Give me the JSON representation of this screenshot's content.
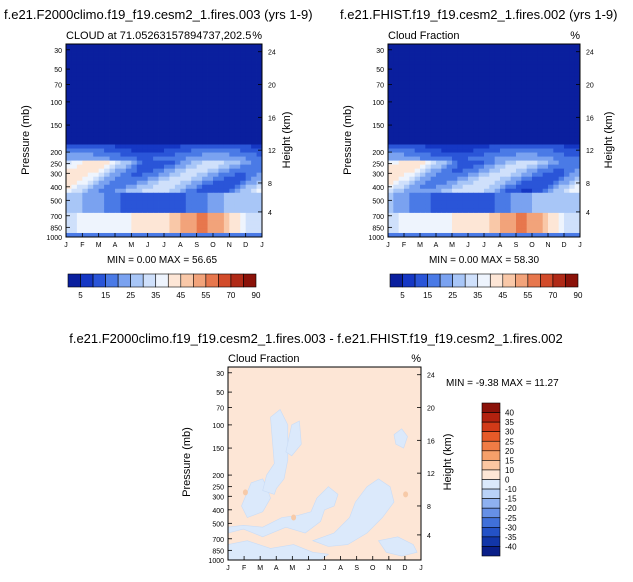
{
  "chart_data": [
    {
      "type": "heatmap",
      "id": "p1",
      "title": "f.e21.F2000climo.f19_f19.cesm2_1.fires.003 (yrs 1-9)",
      "subtitle_left": "CLOUD at 71.05263157894737,202.5",
      "subtitle_right": "%",
      "ylabel": "Pressure (mb)",
      "y2label": "Height (km)",
      "pressure_ticks": [
        "30",
        "50",
        "70",
        "100",
        "150",
        "200",
        "250",
        "300",
        "400",
        "500",
        "700",
        "850",
        "1000"
      ],
      "height_ticks": [
        "24",
        "20",
        "16",
        "12",
        "8",
        "4"
      ],
      "month_ticks": [
        "J",
        "F",
        "M",
        "A",
        "M",
        "J",
        "J",
        "A",
        "S",
        "O",
        "N",
        "D",
        "J"
      ],
      "stats": "MIN =   0.00 MAX =  56.65",
      "min": 0.0,
      "max": 56.65
    },
    {
      "type": "heatmap",
      "id": "p2",
      "title": "f.e21.FHIST.f19_f19.cesm2_1.fires.002 (yrs 1-9)",
      "subtitle_left": "Cloud Fraction",
      "subtitle_right": "%",
      "ylabel": "Pressure (mb)",
      "y2label": "Height (km)",
      "pressure_ticks": [
        "30",
        "50",
        "70",
        "100",
        "150",
        "200",
        "250",
        "300",
        "400",
        "500",
        "700",
        "850",
        "1000"
      ],
      "height_ticks": [
        "24",
        "20",
        "16",
        "12",
        "8",
        "4"
      ],
      "month_ticks": [
        "J",
        "F",
        "M",
        "A",
        "M",
        "J",
        "J",
        "A",
        "S",
        "O",
        "N",
        "D",
        "J"
      ],
      "stats": "MIN =   0.00 MAX =  58.30",
      "min": 0.0,
      "max": 58.3
    },
    {
      "type": "heatmap",
      "id": "p3",
      "title": "f.e21.F2000climo.f19_f19.cesm2_1.fires.003 - f.e21.FHIST.f19_f19.cesm2_1.fires.002",
      "subtitle_left": "Cloud Fraction",
      "subtitle_right": "%",
      "ylabel": "Pressure (mb)",
      "y2label": "Height (km)",
      "pressure_ticks": [
        "30",
        "50",
        "70",
        "100",
        "150",
        "200",
        "250",
        "300",
        "400",
        "500",
        "700",
        "850",
        "1000"
      ],
      "height_ticks": [
        "24",
        "20",
        "16",
        "12",
        "8",
        "4"
      ],
      "month_ticks": [
        "J",
        "F",
        "M",
        "A",
        "M",
        "J",
        "J",
        "A",
        "S",
        "O",
        "N",
        "D",
        "J"
      ],
      "stats": "MIN =  -9.38 MAX =  11.27",
      "min": -9.38,
      "max": 11.27
    }
  ],
  "colorbar_top": {
    "labels": [
      "5",
      "15",
      "25",
      "35",
      "45",
      "55",
      "70",
      "90"
    ],
    "colors": [
      "#0a1f9e",
      "#1537c4",
      "#2a55d8",
      "#4a7ae6",
      "#7aa2f0",
      "#a8c6f7",
      "#cfe0fb",
      "#eef4fd",
      "#fde6d6",
      "#f9c8a8",
      "#f2a37a",
      "#e7774d",
      "#d24b2a",
      "#b02a17",
      "#8b1209"
    ]
  },
  "colorbar_diff": {
    "labels": [
      "40",
      "35",
      "30",
      "25",
      "20",
      "15",
      "10",
      "0",
      "-10",
      "-15",
      "-20",
      "-25",
      "-30",
      "-35",
      "-40"
    ],
    "colors": [
      "#8b1209",
      "#b3220f",
      "#d13a18",
      "#e65a28",
      "#f07c45",
      "#f6a06a",
      "#fbc7a2",
      "#fde6d6",
      "#dbe9fb",
      "#b9d2f7",
      "#8eb1f0",
      "#6690e6",
      "#4070d9",
      "#2452c6",
      "#1236a8",
      "#0a1f88"
    ]
  }
}
